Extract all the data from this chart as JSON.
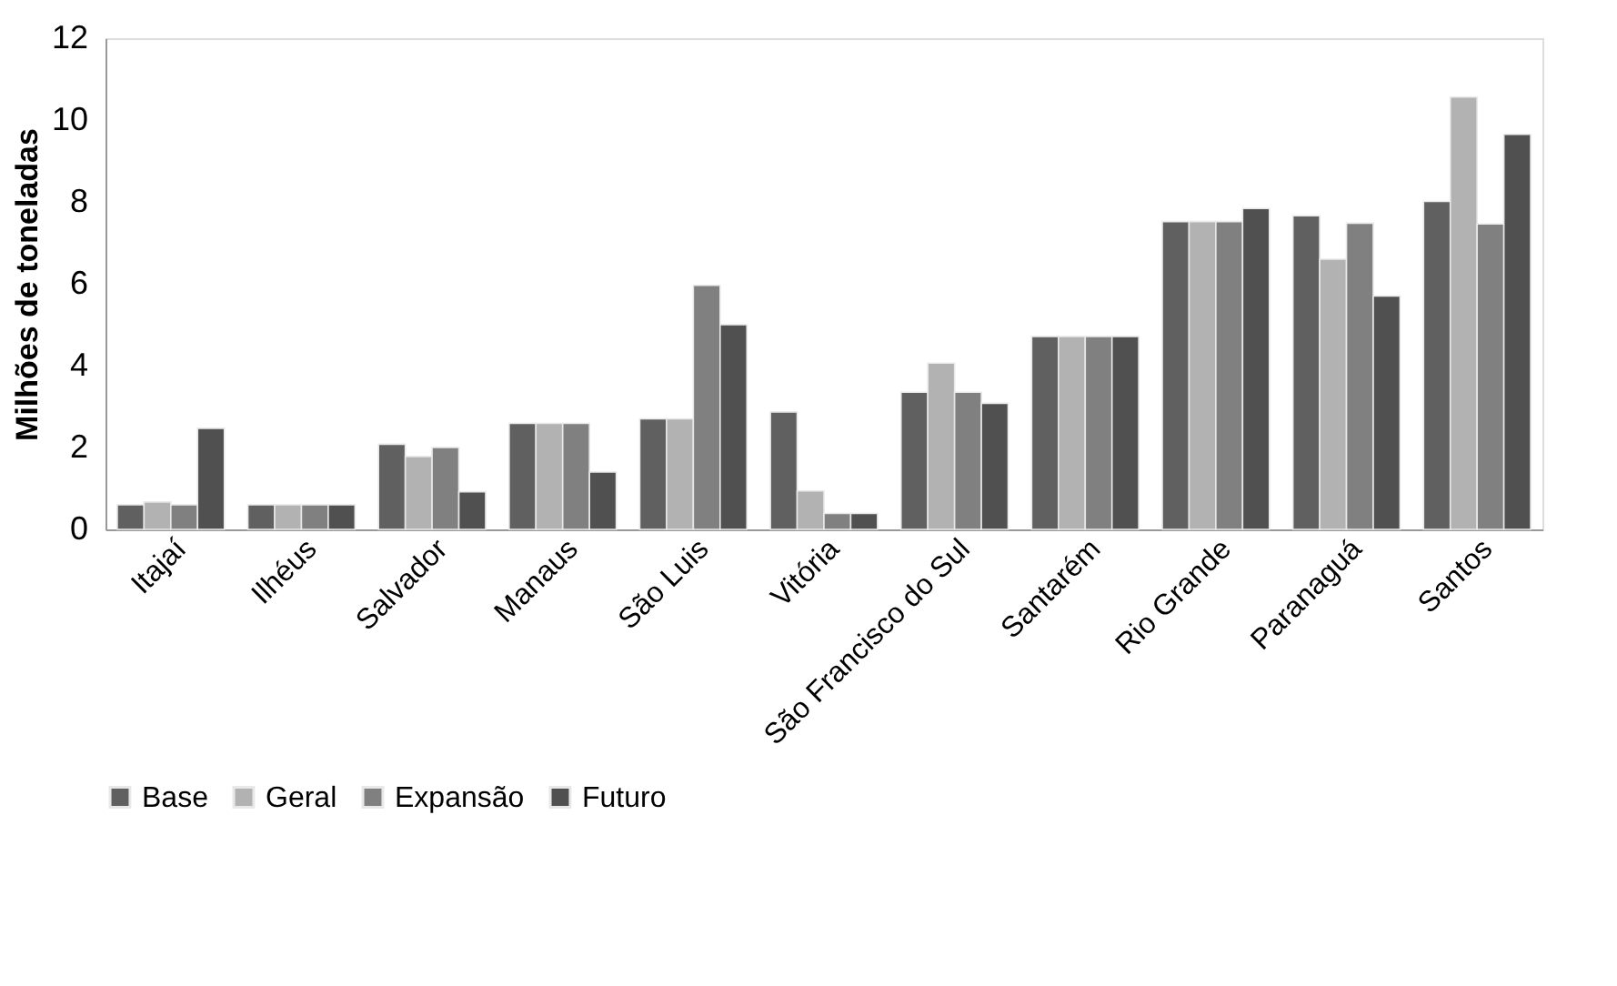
{
  "chart_data": {
    "type": "bar",
    "ylabel": "Milhões de toneladas",
    "categories": [
      "Itajaí",
      "Ilhéus",
      "Salvador",
      "Manaus",
      "São Luis",
      "Vitória",
      "São Francisco do Sul",
      "Santarém",
      "Rio Grande",
      "Paranaguá",
      "Santos"
    ],
    "series": [
      {
        "name": "Base",
        "color": "#606060",
        "values": [
          0.6,
          0.6,
          2.08,
          2.59,
          2.7,
          2.87,
          3.35,
          4.71,
          7.52,
          7.66,
          8.01
        ]
      },
      {
        "name": "Geral",
        "color": "#b2b2b2",
        "values": [
          0.67,
          0.6,
          1.78,
          2.59,
          2.7,
          0.94,
          4.06,
          4.71,
          7.52,
          6.6,
          10.56
        ]
      },
      {
        "name": "Expansão",
        "color": "#808080",
        "values": [
          0.6,
          0.6,
          2.0,
          2.59,
          5.96,
          0.39,
          3.35,
          4.71,
          7.52,
          7.48,
          7.46
        ]
      },
      {
        "name": "Futuro",
        "color": "#505050",
        "values": [
          2.47,
          0.6,
          0.92,
          1.4,
          5.0,
          0.39,
          3.08,
          4.71,
          7.84,
          5.7,
          9.65
        ]
      }
    ],
    "ylim": [
      0,
      12
    ],
    "yticks": [
      0,
      2,
      4,
      6,
      8,
      10,
      12
    ],
    "grid": false,
    "legend": "bottom"
  }
}
